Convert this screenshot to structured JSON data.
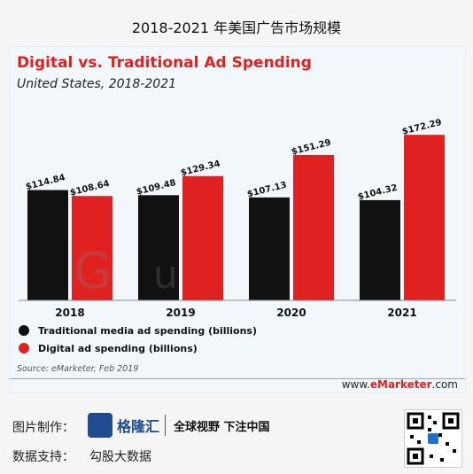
{
  "page_title": "2018-2021 年美国广告市场规模",
  "chart_data": {
    "type": "bar",
    "title": "Digital vs. Traditional Ad Spending",
    "subtitle": "United States, 2018-2021",
    "categories": [
      "2018",
      "2019",
      "2020",
      "2021"
    ],
    "series": [
      {
        "name": "Traditional media ad spending (billions)",
        "values": [
          114.84,
          109.48,
          107.13,
          104.32
        ],
        "labels": [
          "$114.84",
          "$109.48",
          "$107.13",
          "$104.32"
        ],
        "color": "#111111"
      },
      {
        "name": "Digital ad spending (billions)",
        "values": [
          108.64,
          129.34,
          151.29,
          172.29
        ],
        "labels": [
          "$108.64",
          "$129.34",
          "$151.29",
          "$172.29"
        ],
        "color": "#e02121"
      }
    ],
    "ylim": [
      0,
      190
    ],
    "grid": false,
    "legend_position": "bottom-left",
    "source": "Source: eMarketer, Feb 2019",
    "url_prefix": "www.",
    "url_brand": "eMarketer",
    "url_suffix": ".com"
  },
  "footer": {
    "made_by_label": "图片制作：",
    "logo_text": "格隆汇",
    "slogan": "全球视野 下注中国",
    "support_label": "数据支持：",
    "support_value": "勾股大数据"
  },
  "colors": {
    "accent": "#e02121",
    "brand": "#1f4b8f"
  }
}
